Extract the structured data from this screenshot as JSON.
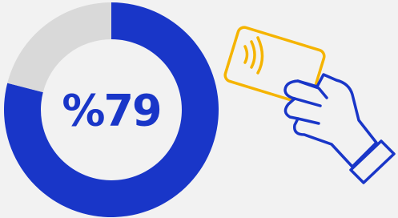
{
  "chart_data": {
    "type": "pie",
    "center_label": "%79",
    "values": [
      79,
      21
    ],
    "colors": [
      "#1936c8",
      "#d9d9d9"
    ]
  }
}
